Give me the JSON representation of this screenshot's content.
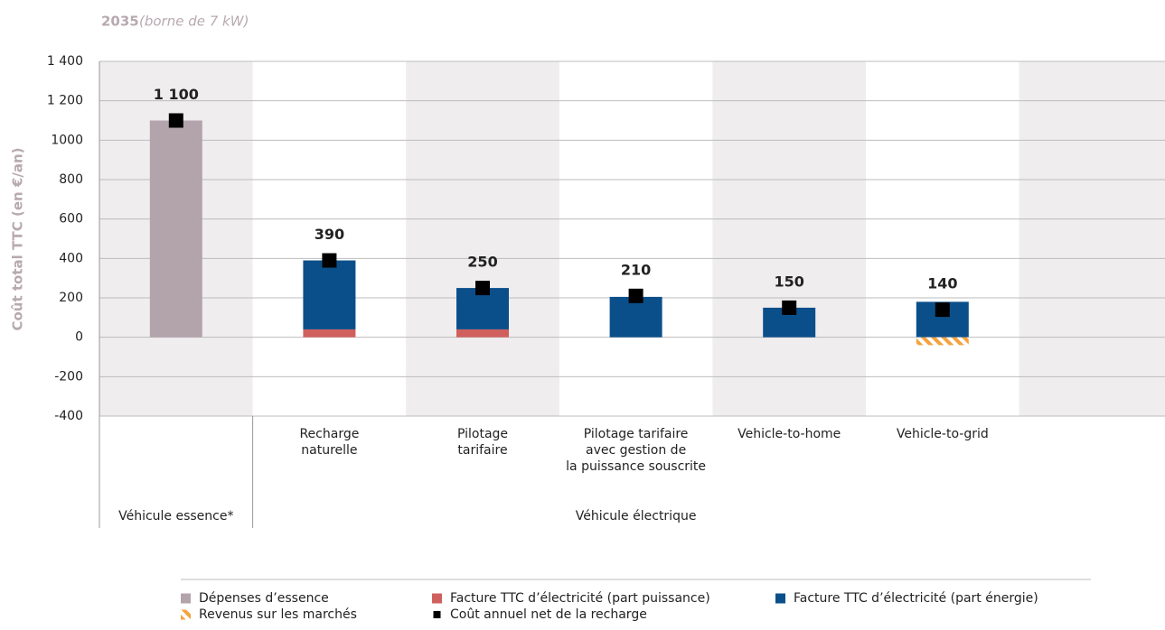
{
  "chart_data": {
    "type": "bar",
    "title": "2035",
    "subtitle": "(borne de 7 kW)",
    "y_label": "Coût total TTC (en €/an)",
    "categories": [
      null,
      "Recharge\nnaturelle",
      "Pilotage\ntarifaire",
      "Pilotage tarifaire\navec gestion de\nla puissance souscrite",
      "Vehicle-to-home",
      "Vehicle-to-grid",
      null
    ],
    "groups": [
      "Véhicule essence*",
      "Véhicule électrique"
    ],
    "series": [
      {
        "name": "Dépenses d’essence",
        "type": "bar",
        "color": "#b3a4ac",
        "values": [
          1100,
          null,
          null,
          null,
          null,
          null,
          null
        ]
      },
      {
        "name": "Facture TTC d’électricité (part puissance)",
        "type": "bar",
        "color": "#d0605e",
        "values": [
          null,
          40,
          40,
          0,
          0,
          0,
          null
        ]
      },
      {
        "name": "Facture TTC d’électricité (part énergie)",
        "type": "bar",
        "color": "#0b4f8a",
        "values": [
          null,
          350,
          210,
          205,
          150,
          180,
          null
        ]
      },
      {
        "name": "Revenus sur les marchés",
        "type": "bar",
        "color": "#f4a340",
        "pattern": "hatch",
        "values": [
          null,
          null,
          null,
          null,
          null,
          -40,
          null
        ]
      },
      {
        "name": "Coût annuel net de la recharge",
        "type": "marker",
        "color": "#000000",
        "values": [
          1100,
          390,
          250,
          210,
          150,
          140,
          null
        ],
        "value_labels": [
          "1 100",
          "390",
          "250",
          "210",
          "150",
          "140",
          null
        ]
      }
    ],
    "ylim": [
      -400,
      1400
    ],
    "yticks": [
      -400,
      -200,
      0,
      200,
      400,
      600,
      800,
      1000,
      {
        "value": 1200,
        "label": "1 200"
      },
      {
        "value": 1400,
        "label": "1 400"
      }
    ],
    "grid": true,
    "legend": "bottom"
  }
}
